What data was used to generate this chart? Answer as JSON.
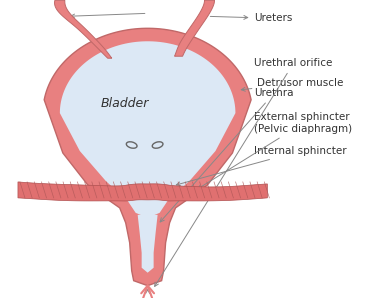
{
  "bg_color": "#ffffff",
  "bladder_wall_color": "#e88080",
  "bladder_interior_color": "#dce8f5",
  "pelvic_diaphragm_color": "#e07070",
  "line_color": "#888888",
  "text_color": "#333333",
  "labels": {
    "bladder": "Bladder",
    "ureters": "Ureters",
    "detrusor": "Detrusor muscle",
    "internal_sphincter": "Internal sphincter",
    "external_sphincter": "External sphincter\n(Pelvic diaphragm)",
    "urethra": "Urethra",
    "urethral_orifice": "Urethral orifice"
  },
  "figsize": [
    3.8,
    2.98
  ],
  "dpi": 100
}
